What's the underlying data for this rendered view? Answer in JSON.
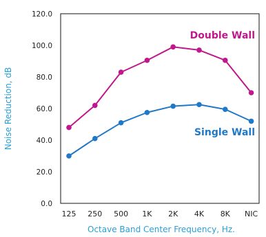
{
  "chart_data": {
    "type": "line",
    "title": "",
    "xlabel": "Octave Band Center Frequency, Hz.",
    "ylabel": "Noise Reduction, dB",
    "categories": [
      "125",
      "250",
      "500",
      "1K",
      "2K",
      "4K",
      "8K",
      "NIC"
    ],
    "ylim": [
      0,
      120
    ],
    "yticks": [
      "0.0",
      "20.0",
      "40.0",
      "60.0",
      "80.0",
      "100.0",
      "120.0"
    ],
    "grid": false,
    "series": [
      {
        "name": "Double Wall",
        "color": "#c0188c",
        "values": [
          48,
          62,
          83,
          90.5,
          99,
          97,
          90.5,
          70
        ]
      },
      {
        "name": "Single Wall",
        "color": "#1f78c8",
        "values": [
          30,
          41,
          51,
          57.5,
          61.5,
          62.5,
          59.5,
          52
        ]
      }
    ]
  }
}
